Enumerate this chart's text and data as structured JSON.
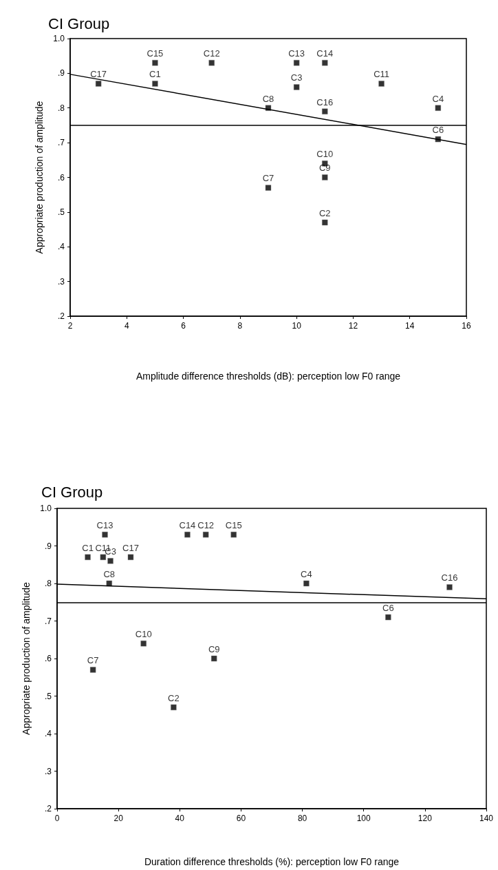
{
  "chart_data": [
    {
      "type": "scatter",
      "title": "CI Group",
      "xlabel": "Amplitude difference thresholds (dB): perception low F0 range",
      "ylabel": "Appropriate production of amplitude",
      "xlim": [
        2,
        16
      ],
      "xticks": [
        2,
        4,
        6,
        8,
        10,
        12,
        14,
        16
      ],
      "ylim": [
        0.2,
        1.0
      ],
      "yticks": [
        {
          "value": 0.2,
          "label": ".2"
        },
        {
          "value": 0.3,
          "label": ".3"
        },
        {
          "value": 0.4,
          "label": ".4"
        },
        {
          "value": 0.5,
          "label": ".5"
        },
        {
          "value": 0.6,
          "label": ".6"
        },
        {
          "value": 0.7,
          "label": ".7"
        },
        {
          "value": 0.8,
          "label": ".8"
        },
        {
          "value": 0.9,
          "label": ".9"
        },
        {
          "value": 1.0,
          "label": "1.0"
        }
      ],
      "grid": false,
      "marker": "square",
      "ref_lines": [
        {
          "axis": "y",
          "value": 0.75,
          "color": "#000000"
        }
      ],
      "series": [
        {
          "color": "#000000",
          "x": [
            3,
            5,
            5,
            7,
            9,
            9,
            10,
            10,
            11,
            11,
            11,
            11,
            11,
            13,
            15,
            15
          ],
          "values": [
            0.87,
            0.93,
            0.87,
            0.93,
            0.8,
            0.57,
            0.93,
            0.86,
            0.93,
            0.79,
            0.64,
            0.6,
            0.47,
            0.87,
            0.8,
            0.71
          ],
          "value_labels": [
            "C17",
            "C15",
            "C1",
            "C12",
            "C8",
            "C7",
            "C13",
            "C3",
            "C14",
            "C16",
            "C10",
            "C9",
            "C2",
            "C11",
            "C4",
            "C6"
          ]
        },
        {
          "type": "line",
          "color": "#000000",
          "marker": "none",
          "line_style": "solid",
          "x": [
            2,
            16
          ],
          "values": [
            0.897,
            0.695
          ]
        }
      ]
    },
    {
      "type": "scatter",
      "title": "CI Group",
      "xlabel": "Duration difference thresholds (%): perception low F0 range",
      "ylabel": "Appropriate production of amplitude",
      "xlim": [
        0,
        140
      ],
      "xticks": [
        0,
        20,
        40,
        60,
        80,
        100,
        120,
        140
      ],
      "ylim": [
        0.2,
        1.0
      ],
      "yticks": [
        {
          "value": 0.2,
          "label": ".2"
        },
        {
          "value": 0.3,
          "label": ".3"
        },
        {
          "value": 0.4,
          "label": ".4"
        },
        {
          "value": 0.5,
          "label": ".5"
        },
        {
          "value": 0.6,
          "label": ".6"
        },
        {
          "value": 0.7,
          "label": ".7"
        },
        {
          "value": 0.8,
          "label": ".8"
        },
        {
          "value": 0.9,
          "label": ".9"
        },
        {
          "value": 1.0,
          "label": "1.0"
        }
      ],
      "grid": false,
      "marker": "square",
      "ref_lines": [
        {
          "axis": "y",
          "value": 0.75,
          "color": "#000000"
        }
      ],
      "series": [
        {
          "color": "#000000",
          "x": [
            10,
            15,
            15.6,
            17.4,
            17,
            24,
            42.5,
            48.5,
            57.6,
            81.3,
            108,
            128,
            11.7,
            28.2,
            51.2,
            38
          ],
          "values": [
            0.87,
            0.87,
            0.93,
            0.86,
            0.8,
            0.87,
            0.93,
            0.93,
            0.93,
            0.8,
            0.71,
            0.79,
            0.57,
            0.64,
            0.6,
            0.47
          ],
          "value_labels": [
            "C1",
            "C11",
            "C13",
            "C3",
            "C8",
            "C17",
            "C14",
            "C12",
            "C15",
            "C4",
            "C6",
            "C16",
            "C7",
            "C10",
            "C9",
            "C2"
          ]
        },
        {
          "type": "line",
          "color": "#000000",
          "marker": "none",
          "line_style": "solid",
          "x": [
            0,
            140
          ],
          "values": [
            0.798,
            0.759
          ]
        }
      ]
    }
  ]
}
